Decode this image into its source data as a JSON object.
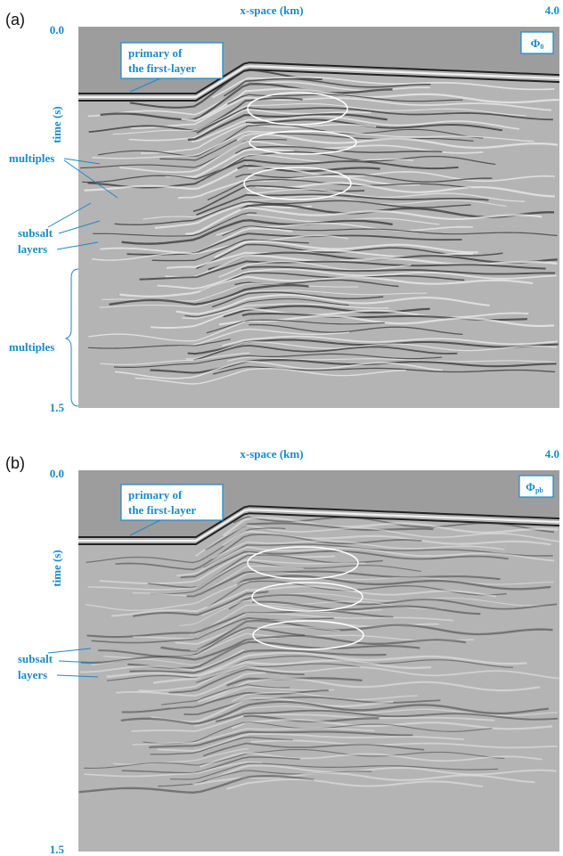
{
  "panels": [
    {
      "label": "(a)",
      "x_label": "x-space (km)",
      "x_end": "4.0",
      "y_start": "0.0",
      "y_end": "1.5",
      "y_label": "time (s)",
      "phi": {
        "symbol": "Φ",
        "subscript": "0"
      },
      "primary": [
        "primary of",
        "the first-layer"
      ],
      "multiples_upper": "multiples",
      "subsalt": [
        "subsalt",
        "layers"
      ],
      "multiples_lower": "multiples"
    },
    {
      "label": "(b)",
      "x_label": "x-space (km)",
      "x_end": "4.0",
      "y_start": "0.0",
      "y_end": "1.5",
      "y_label": "time (s)",
      "phi": {
        "symbol": "Φ",
        "subscript": "pb"
      },
      "primary": [
        "primary of",
        "the first-layer"
      ],
      "subsalt": [
        "subsalt",
        "layers"
      ]
    }
  ]
}
